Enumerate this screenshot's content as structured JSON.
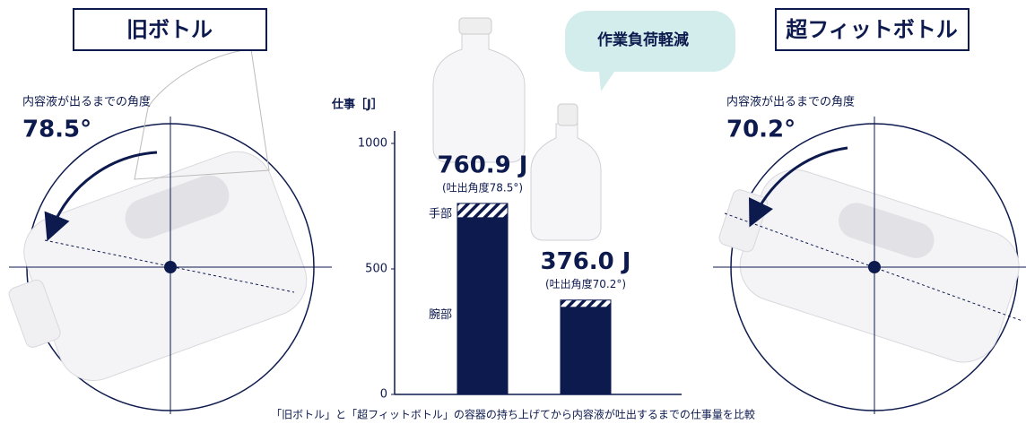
{
  "panels": [
    {
      "title": "旧ボトル",
      "caption": "内容液が出るまでの角度",
      "angle": "78.5°"
    },
    {
      "title": "超フィットボトル",
      "caption": "内容液が出るまでの角度",
      "angle": "70.2°"
    }
  ],
  "badge": "作業負荷軽減",
  "chart_data": {
    "type": "stacked-bar",
    "y_label": "仕事［J］",
    "caption": "「旧ボトル」と「超フィットボトル」の容器の持ち上げてから内容液が吐出するまでの仕事量を比較",
    "categories": [
      null,
      null
    ],
    "series": [
      {
        "name": "腕部",
        "color": "#0d1a4e",
        "values": [
          704,
          347
        ]
      },
      {
        "name": "手部",
        "color": "hatch",
        "values": [
          57,
          29
        ]
      }
    ],
    "totals": [
      760.9,
      376.0
    ],
    "total_labels": [
      "760.9 J",
      "376.0 J"
    ],
    "total_notes": [
      "(吐出角度78.5°)",
      "(吐出角度70.2°)"
    ],
    "ylim": [
      0,
      1050
    ],
    "yticks": [
      0,
      500,
      1000
    ]
  }
}
